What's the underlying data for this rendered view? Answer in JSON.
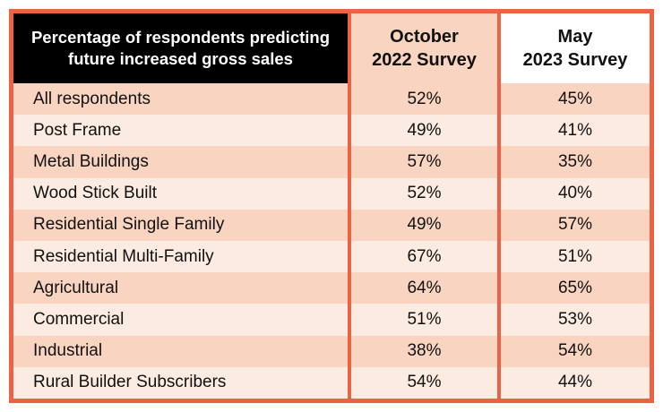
{
  "colors": {
    "accent_border": "#EB6245",
    "row_light": "#FBEBE1",
    "row_dark": "#F9D5C1",
    "header_title_bg": "#000000",
    "header_title_text": "#FFFFFF",
    "header_october_bg": "#F9D5C1",
    "header_may_bg": "#FFFFFF",
    "text": "#111111"
  },
  "table": {
    "title_line1": "Percentage of respondents predicting",
    "title_line2": "future increased gross sales",
    "columns": [
      {
        "line1": "October",
        "line2": "2022 Survey"
      },
      {
        "line1": "May",
        "line2": "2023 Survey"
      }
    ],
    "rows": [
      {
        "label": "All respondents",
        "oct": "52%",
        "may": "45%"
      },
      {
        "label": "Post Frame",
        "oct": "49%",
        "may": "41%"
      },
      {
        "label": "Metal Buildings",
        "oct": "57%",
        "may": "35%"
      },
      {
        "label": "Wood Stick Built",
        "oct": "52%",
        "may": "40%"
      },
      {
        "label": "Residential Single Family",
        "oct": "49%",
        "may": "57%"
      },
      {
        "label": "Residential Multi-Family",
        "oct": "67%",
        "may": "51%"
      },
      {
        "label": "Agricultural",
        "oct": "64%",
        "may": "65%"
      },
      {
        "label": "Commercial",
        "oct": "51%",
        "may": "53%"
      },
      {
        "label": "Industrial",
        "oct": "38%",
        "may": "54%"
      },
      {
        "label": "Rural Builder Subscribers",
        "oct": "54%",
        "may": "44%"
      }
    ]
  },
  "chart_data": {
    "type": "table",
    "title": "Percentage of respondents predicting future increased gross sales",
    "categories": [
      "All respondents",
      "Post Frame",
      "Metal Buildings",
      "Wood Stick Built",
      "Residential Single Family",
      "Residential Multi-Family",
      "Agricultural",
      "Commercial",
      "Industrial",
      "Rural Builder Subscribers"
    ],
    "series": [
      {
        "name": "October 2022 Survey",
        "values": [
          52,
          49,
          57,
          52,
          49,
          67,
          64,
          51,
          38,
          54
        ]
      },
      {
        "name": "May 2023 Survey",
        "values": [
          45,
          41,
          35,
          40,
          57,
          51,
          65,
          53,
          54,
          44
        ]
      }
    ],
    "units": "%",
    "legend_position": "none",
    "grid": false
  }
}
